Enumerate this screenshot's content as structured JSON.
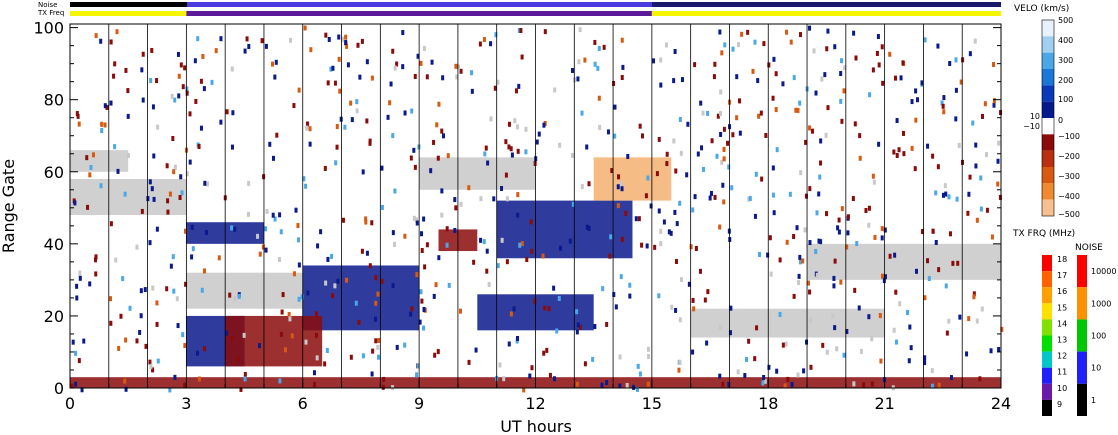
{
  "chart_data": {
    "type": "heatmap",
    "xlabel": "UT hours",
    "ylabel": "Range Gate",
    "xlim": [
      0,
      24
    ],
    "ylim": [
      0,
      101
    ],
    "x_ticks": [
      "0",
      "3",
      "6",
      "9",
      "12",
      "15",
      "18",
      "21",
      "24"
    ],
    "y_ticks": [
      "0",
      "20",
      "40",
      "60",
      "80",
      "100"
    ],
    "x_tick_values": [
      0,
      3,
      6,
      9,
      12,
      15,
      18,
      21,
      24
    ],
    "y_tick_values": [
      0,
      20,
      40,
      60,
      80,
      100
    ],
    "colors": {
      "ground_scatter": "#c8c8c8",
      "pos_velocity": "#0a1a8c",
      "neg_velocity": "#8b0a0a",
      "noise_strip": "#6a3ad6",
      "freq_strip_low": "#f5f500",
      "freq_strip_high": "#5b1a9a"
    },
    "top_strips": {
      "noise_label": "Noise",
      "freq_label": "TX Freq",
      "freq_segments": [
        {
          "from": 0,
          "to": 3,
          "color": "#f5f500"
        },
        {
          "from": 3,
          "to": 15,
          "color": "#5b1a9a"
        },
        {
          "from": 15,
          "to": 24,
          "color": "#f5f500"
        }
      ]
    },
    "regions": [
      {
        "kind": "ground",
        "x": [
          0.0,
          3.0
        ],
        "y": [
          48,
          58
        ]
      },
      {
        "kind": "ground",
        "x": [
          0.0,
          1.5
        ],
        "y": [
          60,
          66
        ]
      },
      {
        "kind": "ground",
        "x": [
          3.0,
          6.0
        ],
        "y": [
          22,
          32
        ]
      },
      {
        "kind": "ground",
        "x": [
          9.0,
          12.0
        ],
        "y": [
          55,
          64
        ]
      },
      {
        "kind": "ground",
        "x": [
          16.0,
          21.0
        ],
        "y": [
          14,
          22
        ]
      },
      {
        "kind": "ground",
        "x": [
          19.0,
          24.0
        ],
        "y": [
          30,
          40
        ]
      },
      {
        "kind": "pos",
        "x": [
          6.0,
          9.0
        ],
        "y": [
          16,
          34
        ]
      },
      {
        "kind": "pos",
        "x": [
          3.0,
          4.5
        ],
        "y": [
          6,
          20
        ]
      },
      {
        "kind": "pos",
        "x": [
          10.5,
          13.5
        ],
        "y": [
          16,
          26
        ]
      },
      {
        "kind": "pos",
        "x": [
          11.0,
          14.5
        ],
        "y": [
          36,
          52
        ]
      },
      {
        "kind": "pos",
        "x": [
          3.0,
          5.0
        ],
        "y": [
          40,
          46
        ]
      },
      {
        "kind": "neg",
        "x": [
          4.0,
          6.5
        ],
        "y": [
          6,
          20
        ]
      },
      {
        "kind": "neg",
        "x": [
          9.5,
          10.5
        ],
        "y": [
          38,
          44
        ]
      },
      {
        "kind": "neg",
        "x": [
          0.0,
          24.0
        ],
        "y": [
          0,
          3
        ]
      },
      {
        "kind": "orange",
        "x": [
          13.5,
          15.5
        ],
        "y": [
          52,
          64
        ]
      }
    ]
  },
  "velo_colorbar": {
    "title": "VELO (km/s)",
    "labels": [
      "500",
      "400",
      "300",
      "200",
      "100",
      "10",
      "0",
      "−10",
      "−100",
      "−200",
      "−300",
      "−400",
      "−500"
    ],
    "colors": [
      "#e8f2ff",
      "#a0cff0",
      "#4aa8e8",
      "#1a78d8",
      "#0a3ab8",
      "#061a8c",
      "#ffffff",
      "#8b0a0a",
      "#b83010",
      "#d85a10",
      "#f08a30",
      "#f8c090"
    ]
  },
  "freq_colorbar": {
    "title": "TX FRQ (MHz)",
    "labels": [
      "18",
      "17",
      "16",
      "15",
      "14",
      "13",
      "12",
      "11",
      "10",
      "9"
    ],
    "colors": [
      "#ff0000",
      "#ff6000",
      "#ffa000",
      "#ffe000",
      "#80e000",
      "#00e000",
      "#00c8c8",
      "#2020ff",
      "#6a1aa8",
      "#000000"
    ]
  },
  "noise_colorbar": {
    "title": "NOISE",
    "labels": [
      "10000",
      "1000",
      "100",
      "10",
      "1"
    ],
    "colors": [
      "#ff0000",
      "#ff9000",
      "#00c800",
      "#2020ff",
      "#000000"
    ]
  }
}
